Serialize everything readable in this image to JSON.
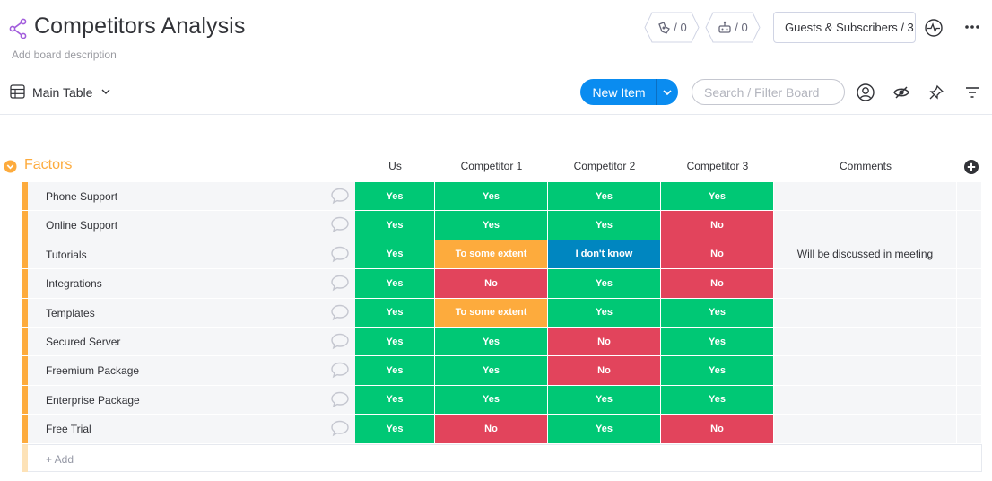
{
  "board": {
    "title": "Competitors Analysis",
    "description": "Add board description"
  },
  "header": {
    "automations_count": "/ 0",
    "integrations_count": "/ 0",
    "guests_label": "Guests & Subscribers / 3",
    "icons": [
      "share-icon",
      "automations-icon",
      "integrations-icon",
      "activity-icon",
      "more-icon"
    ]
  },
  "toolbar": {
    "view_name": "Main Table",
    "new_item_label": "New Item",
    "search_placeholder": "Search / Filter Board",
    "icons": [
      "table-icon",
      "person-icon",
      "eye-icon",
      "pin-icon",
      "filter-icon"
    ]
  },
  "group": {
    "title": "Factors",
    "color": "#fdab3d",
    "columns": [
      "Us",
      "Competitor 1",
      "Competitor 2",
      "Competitor 3",
      "Comments"
    ],
    "add_label": "+ Add"
  },
  "status_colors": {
    "Yes": "#00c875",
    "No": "#e2445c",
    "To some extent": "#fdab3d",
    "I don't know": "#0086c0"
  },
  "rows": [
    {
      "name": "Phone Support",
      "us": "Yes",
      "c1": "Yes",
      "c2": "Yes",
      "c3": "Yes",
      "comment": ""
    },
    {
      "name": "Online Support",
      "us": "Yes",
      "c1": "Yes",
      "c2": "Yes",
      "c3": "No",
      "comment": ""
    },
    {
      "name": "Tutorials",
      "us": "Yes",
      "c1": "To some extent",
      "c2": "I don't know",
      "c3": "No",
      "comment": "Will be discussed in meeting"
    },
    {
      "name": "Integrations",
      "us": "Yes",
      "c1": "No",
      "c2": "Yes",
      "c3": "No",
      "comment": ""
    },
    {
      "name": "Templates",
      "us": "Yes",
      "c1": "To some extent",
      "c2": "Yes",
      "c3": "Yes",
      "comment": ""
    },
    {
      "name": "Secured Server",
      "us": "Yes",
      "c1": "Yes",
      "c2": "No",
      "c3": "Yes",
      "comment": ""
    },
    {
      "name": "Freemium Package",
      "us": "Yes",
      "c1": "Yes",
      "c2": "No",
      "c3": "Yes",
      "comment": ""
    },
    {
      "name": "Enterprise Package",
      "us": "Yes",
      "c1": "Yes",
      "c2": "Yes",
      "c3": "Yes",
      "comment": ""
    },
    {
      "name": "Free Trial",
      "us": "Yes",
      "c1": "No",
      "c2": "Yes",
      "c3": "No",
      "comment": ""
    }
  ]
}
